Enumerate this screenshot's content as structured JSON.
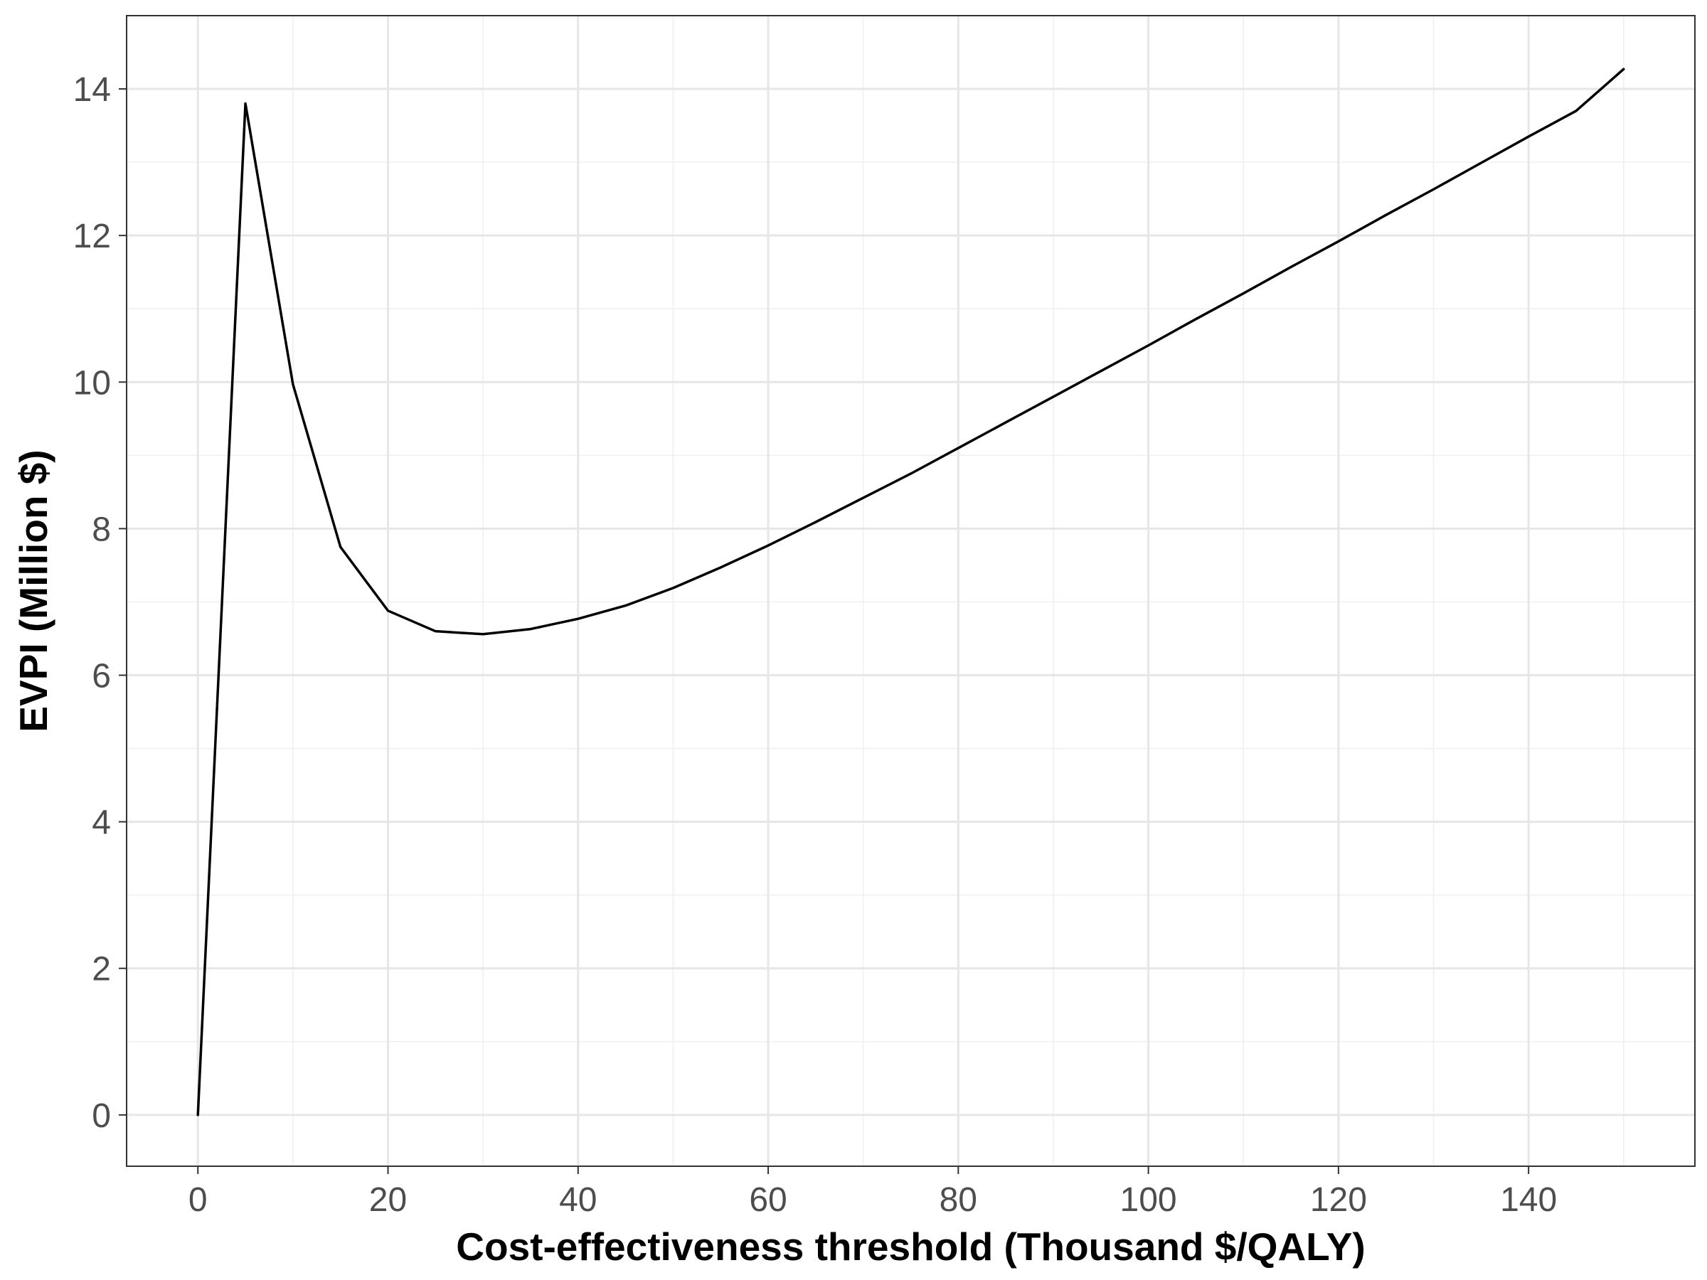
{
  "chart_data": {
    "type": "line",
    "title": "",
    "xlabel": "Cost-effectiveness threshold (Thousand $/QALY)",
    "ylabel": "EVPI (Million $)",
    "xlim": [
      -7.5,
      157.5
    ],
    "ylim": [
      -0.7,
      15.0
    ],
    "x_ticks": [
      0,
      20,
      40,
      60,
      80,
      100,
      120,
      140
    ],
    "y_ticks": [
      0,
      2,
      4,
      6,
      8,
      10,
      12,
      14
    ],
    "x_tick_labels": [
      "0",
      "20",
      "40",
      "60",
      "80",
      "100",
      "120",
      "140"
    ],
    "y_tick_labels": [
      "0",
      "2",
      "4",
      "6",
      "8",
      "10",
      "12",
      "14"
    ],
    "grid": true,
    "legend": "none",
    "line_color": "#000000",
    "series": [
      {
        "x": [
          0,
          5,
          10,
          15,
          20,
          25,
          30,
          35,
          40,
          45,
          50,
          55,
          60,
          65,
          70,
          75,
          80,
          85,
          90,
          95,
          100,
          105,
          110,
          115,
          120,
          125,
          130,
          135,
          140,
          145,
          150
        ],
        "values": [
          0,
          13.8,
          9.97,
          7.75,
          6.88,
          6.6,
          6.56,
          6.63,
          6.77,
          6.95,
          7.19,
          7.47,
          7.77,
          8.09,
          8.42,
          8.75,
          9.1,
          9.45,
          9.8,
          10.15,
          10.5,
          10.86,
          11.21,
          11.57,
          11.92,
          12.28,
          12.63,
          12.99,
          13.35,
          13.7,
          14.27
        ]
      }
    ]
  }
}
